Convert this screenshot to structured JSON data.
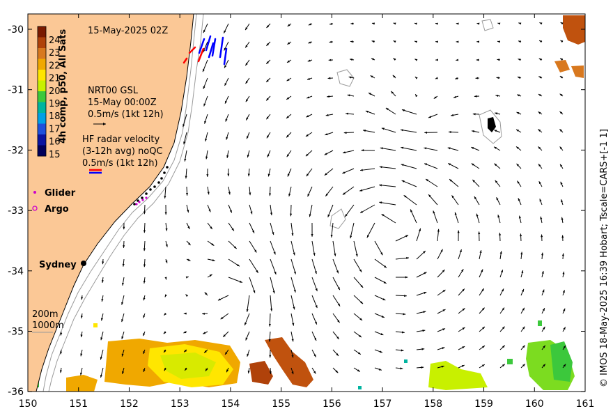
{
  "title": "15-May-2025 02Z",
  "colorbar": {
    "label": "4h comp, p50, All Sats",
    "ticks": [
      "24",
      "23",
      "22",
      "21",
      "20",
      "19",
      "18",
      "17",
      "16",
      "15"
    ],
    "colors": [
      "#7a1a00",
      "#b0420a",
      "#d8781e",
      "#f0a800",
      "#ffe600",
      "#c8f000",
      "#3cc83c",
      "#00b4a0",
      "#00a0e6",
      "#1e50dc",
      "#0a14a0",
      "#00005a"
    ]
  },
  "legend": {
    "nrt_title": "NRT00 GSL",
    "nrt_time": "15-May 00:00Z",
    "nrt_scale": "0.5m/s (1kt 12h)",
    "hf_title": "HF radar velocity",
    "hf_avg": "(3-12h avg) noQC",
    "hf_scale": "0.5m/s (1kt 12h)",
    "glider": "Glider",
    "argo": "Argo",
    "contour_200": "200m",
    "contour_1000": "1000m"
  },
  "place": "Sydney",
  "credit": "© IMOS 18-May-2025 16:39 Hobart; Tscale=CARS+[-1 1]",
  "axes": {
    "lon_ticks": [
      "150",
      "151",
      "152",
      "153",
      "154",
      "155",
      "156",
      "157",
      "158",
      "159",
      "160",
      "161"
    ],
    "lat_ticks": [
      "-30",
      "-31",
      "-32",
      "-33",
      "-34",
      "-35",
      "-36"
    ]
  },
  "colors": {
    "land": "#fbc896",
    "vector": "#000000",
    "hf_blue": "#0000ff",
    "hf_red": "#ff0000",
    "glider": "#cc00cc"
  }
}
